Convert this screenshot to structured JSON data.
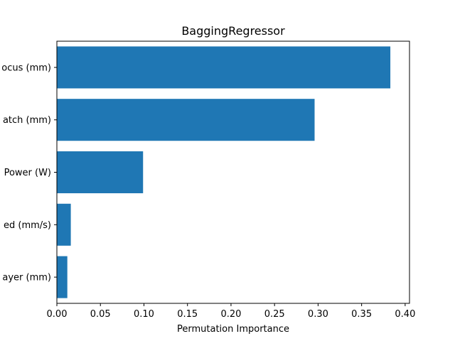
{
  "chart_data": {
    "type": "bar",
    "orientation": "horizontal",
    "title": "BaggingRegressor",
    "xlabel": "Permutation Importance",
    "ylabel": "",
    "categories": [
      "ocus (mm)",
      "atch (mm)",
      "Power (W)",
      "ed (mm/s)",
      "ayer (mm)"
    ],
    "values": [
      0.383,
      0.296,
      0.099,
      0.016,
      0.012
    ],
    "xlim": [
      0.0,
      0.405
    ],
    "xticks": [
      0.0,
      0.05,
      0.1,
      0.15,
      0.2,
      0.25,
      0.3,
      0.35,
      0.4
    ],
    "xtick_labels": [
      "0.00",
      "0.05",
      "0.10",
      "0.15",
      "0.20",
      "0.25",
      "0.30",
      "0.35",
      "0.40"
    ],
    "bar_color": "#1f77b4",
    "grid": false,
    "legend": false
  }
}
